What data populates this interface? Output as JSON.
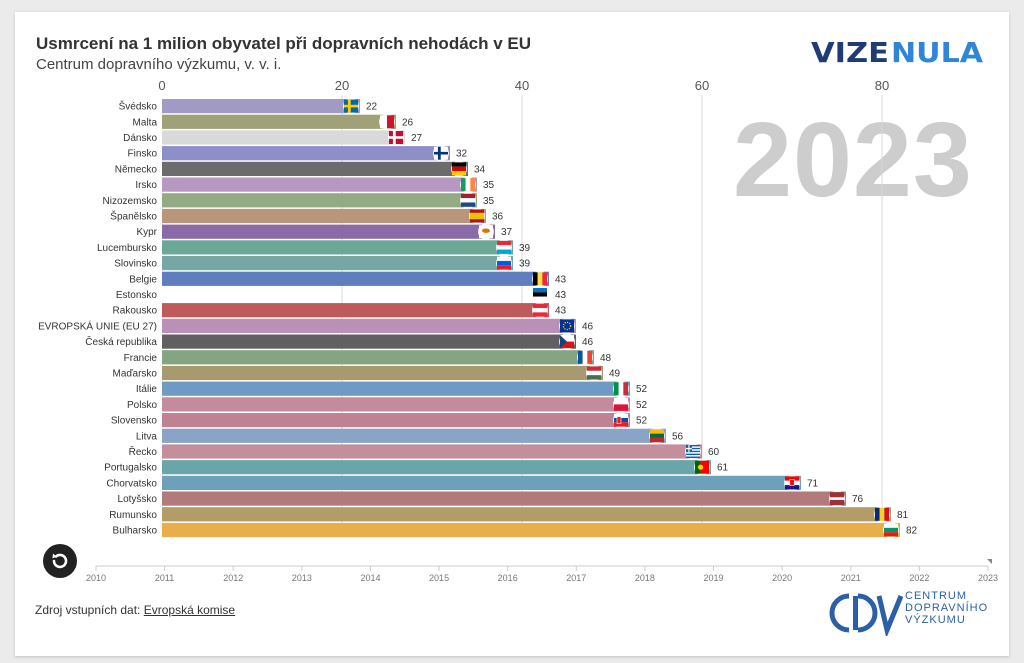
{
  "header": {
    "title": "Usmrcení na 1 milion obyvatel při dopravních nehodách v EU",
    "subtitle": "Centrum dopravního výzkumu, v. v. i.",
    "logo_text": "VIZENULA"
  },
  "year_display": "2023",
  "footer": {
    "source_label": "Zdroj vstupních dat:",
    "source_link": "Evropská komise",
    "cdv_lines": [
      "CENTRUM",
      "DOPRAVNÍHO",
      "VÝZKUMU"
    ]
  },
  "chart_data": {
    "type": "bar",
    "orientation": "horizontal",
    "title": "Usmrcení na 1 milion obyvatel při dopravních nehodách v EU",
    "xlim": [
      0,
      90
    ],
    "x_ticks": [
      0,
      20,
      40,
      60,
      80
    ],
    "grid": true,
    "categories": [
      "Švédsko",
      "Malta",
      "Dánsko",
      "Finsko",
      "Německo",
      "Irsko",
      "Nizozemsko",
      "Španělsko",
      "Kypr",
      "Lucembursko",
      "Slovinsko",
      "Belgie",
      "Estonsko",
      "Rakousko",
      "EVROPSKÁ UNIE (EU 27)",
      "Česká republika",
      "Francie",
      "Maďarsko",
      "Itálie",
      "Polsko",
      "Slovensko",
      "Litva",
      "Řecko",
      "Portugalsko",
      "Chorvatsko",
      "Lotyšsko",
      "Rumunsko",
      "Bulharsko"
    ],
    "values": [
      22,
      26,
      27,
      32,
      34,
      35,
      35,
      36,
      37,
      39,
      39,
      43,
      43,
      43,
      46,
      46,
      48,
      49,
      52,
      52,
      52,
      56,
      60,
      61,
      71,
      76,
      81,
      82
    ],
    "value_labels": [
      "22",
      "26",
      "27",
      "32",
      "34",
      "35",
      "35",
      "36",
      "37",
      "39",
      "39",
      "43",
      "43",
      "43",
      "46",
      "46",
      "48",
      "49",
      "52",
      "52",
      "52",
      "56",
      "60",
      "61",
      "71",
      "76",
      "81",
      "82"
    ],
    "bar_colors": [
      "#a19ac4",
      "#a0a176",
      "#d9d9d9",
      "#8e8fc8",
      "#6c6c6c",
      "#b698c2",
      "#93ab83",
      "#b9957a",
      "#8a6aa8",
      "#6ca896",
      "#76a7a2",
      "#5f7ebf",
      "#ffffff",
      "#bf5a5a",
      "#b890b8",
      "#606060",
      "#84a482",
      "#a69a6e",
      "#6e9ac4",
      "#c48a9e",
      "#bf8292",
      "#8aa4c8",
      "#c48e9c",
      "#6aa6a8",
      "#6ea0ba",
      "#b27a7a",
      "#b29c68",
      "#e8ae4c"
    ],
    "flag_icons": [
      "flag-se",
      "flag-mt",
      "flag-dk",
      "flag-fi",
      "flag-de",
      "flag-ie",
      "flag-nl",
      "flag-es",
      "flag-cy",
      "flag-lu",
      "flag-si",
      "flag-be",
      "flag-ee",
      "flag-at",
      "flag-eu",
      "flag-cz",
      "flag-fr",
      "flag-hu",
      "flag-it",
      "flag-pl",
      "flag-sk",
      "flag-lt",
      "flag-gr",
      "flag-pt",
      "flag-hr",
      "flag-lv",
      "flag-ro",
      "flag-bg"
    ],
    "timeline": {
      "years": [
        "2010",
        "2011",
        "2012",
        "2013",
        "2014",
        "2015",
        "2016",
        "2017",
        "2018",
        "2019",
        "2020",
        "2021",
        "2022",
        "2023"
      ],
      "current": "2023"
    }
  }
}
